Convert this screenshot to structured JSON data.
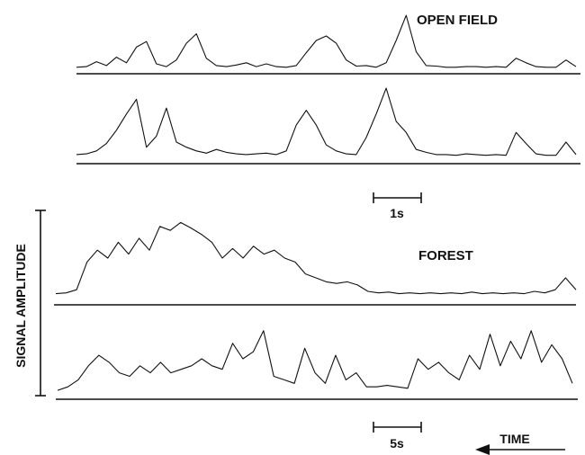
{
  "chart_data": [
    {
      "type": "line",
      "title": "OPEN FIELD",
      "scale_bar_label": "1s",
      "traces": [
        {
          "x": [
            0,
            2,
            4,
            6,
            8,
            10,
            12,
            14,
            16,
            18,
            20,
            22,
            24,
            26,
            28,
            30,
            32,
            34,
            36,
            38,
            40,
            42,
            44,
            46,
            48,
            50,
            52,
            54,
            56,
            58,
            60,
            62,
            64,
            66,
            68,
            70,
            72,
            74,
            76,
            78,
            80,
            82,
            84,
            86,
            88,
            90,
            92,
            94,
            96,
            98,
            100
          ],
          "values": [
            0.02,
            0.03,
            0.12,
            0.05,
            0.2,
            0.1,
            0.38,
            0.48,
            0.08,
            0.03,
            0.15,
            0.45,
            0.62,
            0.18,
            0.05,
            0.03,
            0.06,
            0.1,
            0.03,
            0.08,
            0.03,
            0.02,
            0.05,
            0.28,
            0.5,
            0.58,
            0.45,
            0.15,
            0.04,
            0.05,
            0.02,
            0.1,
            0.5,
            0.95,
            0.3,
            0.05,
            0.04,
            0.02,
            0.02,
            0.03,
            0.03,
            0.02,
            0.03,
            0.02,
            0.18,
            0.1,
            0.03,
            0.02,
            0.02,
            0.15,
            0.03
          ]
        },
        {
          "x": [
            0,
            2,
            4,
            6,
            8,
            10,
            12,
            14,
            16,
            18,
            20,
            22,
            24,
            26,
            28,
            30,
            32,
            34,
            36,
            38,
            40,
            42,
            44,
            46,
            48,
            50,
            52,
            54,
            56,
            58,
            60,
            62,
            64,
            66,
            68,
            70,
            72,
            74,
            76,
            78,
            80,
            82,
            84,
            86,
            88,
            90,
            92,
            94,
            96,
            98,
            100
          ],
          "values": [
            0.05,
            0.06,
            0.1,
            0.2,
            0.38,
            0.6,
            0.8,
            0.15,
            0.3,
            0.68,
            0.22,
            0.15,
            0.1,
            0.07,
            0.12,
            0.08,
            0.06,
            0.05,
            0.06,
            0.07,
            0.05,
            0.1,
            0.45,
            0.65,
            0.45,
            0.18,
            0.1,
            0.06,
            0.05,
            0.28,
            0.6,
            0.95,
            0.5,
            0.35,
            0.12,
            0.08,
            0.05,
            0.05,
            0.04,
            0.06,
            0.05,
            0.04,
            0.05,
            0.04,
            0.35,
            0.2,
            0.06,
            0.04,
            0.04,
            0.22,
            0.05
          ]
        }
      ]
    },
    {
      "type": "line",
      "title": "FOREST",
      "ylabel": "SIGNAL AMPLITUDE",
      "scale_bar_label": "5s",
      "time_arrow_label": "TIME",
      "traces": [
        {
          "x": [
            0,
            2,
            4,
            6,
            8,
            10,
            12,
            14,
            16,
            18,
            20,
            22,
            24,
            26,
            28,
            30,
            32,
            34,
            36,
            38,
            40,
            42,
            44,
            46,
            48,
            50,
            52,
            54,
            56,
            58,
            60,
            62,
            64,
            66,
            68,
            70,
            72,
            74,
            76,
            78,
            80,
            82,
            84,
            86,
            88,
            90,
            92,
            94,
            96,
            98,
            100
          ],
          "values": [
            0.05,
            0.06,
            0.1,
            0.45,
            0.6,
            0.5,
            0.7,
            0.55,
            0.75,
            0.6,
            0.9,
            0.85,
            0.95,
            0.88,
            0.8,
            0.7,
            0.5,
            0.62,
            0.5,
            0.65,
            0.55,
            0.6,
            0.5,
            0.45,
            0.3,
            0.25,
            0.2,
            0.18,
            0.2,
            0.16,
            0.08,
            0.06,
            0.07,
            0.05,
            0.06,
            0.05,
            0.06,
            0.05,
            0.06,
            0.05,
            0.07,
            0.05,
            0.06,
            0.05,
            0.06,
            0.05,
            0.08,
            0.06,
            0.1,
            0.25,
            0.1
          ]
        },
        {
          "x": [
            0,
            2,
            4,
            6,
            8,
            10,
            12,
            14,
            16,
            18,
            20,
            22,
            24,
            26,
            28,
            30,
            32,
            34,
            36,
            38,
            40,
            42,
            44,
            46,
            48,
            50,
            52,
            54,
            56,
            58,
            60,
            62,
            64,
            66,
            68,
            70,
            72,
            74,
            76,
            78,
            80,
            82,
            84,
            86,
            88,
            90,
            92,
            94,
            96,
            98,
            100
          ],
          "values": [
            0.05,
            0.1,
            0.2,
            0.4,
            0.55,
            0.45,
            0.3,
            0.25,
            0.4,
            0.3,
            0.45,
            0.3,
            0.35,
            0.4,
            0.5,
            0.4,
            0.35,
            0.72,
            0.5,
            0.6,
            0.9,
            0.25,
            0.2,
            0.15,
            0.65,
            0.3,
            0.15,
            0.55,
            0.2,
            0.3,
            0.1,
            0.1,
            0.12,
            0.1,
            0.08,
            0.5,
            0.35,
            0.45,
            0.3,
            0.2,
            0.55,
            0.35,
            0.85,
            0.4,
            0.75,
            0.5,
            0.9,
            0.45,
            0.7,
            0.5,
            0.15
          ]
        }
      ]
    }
  ]
}
